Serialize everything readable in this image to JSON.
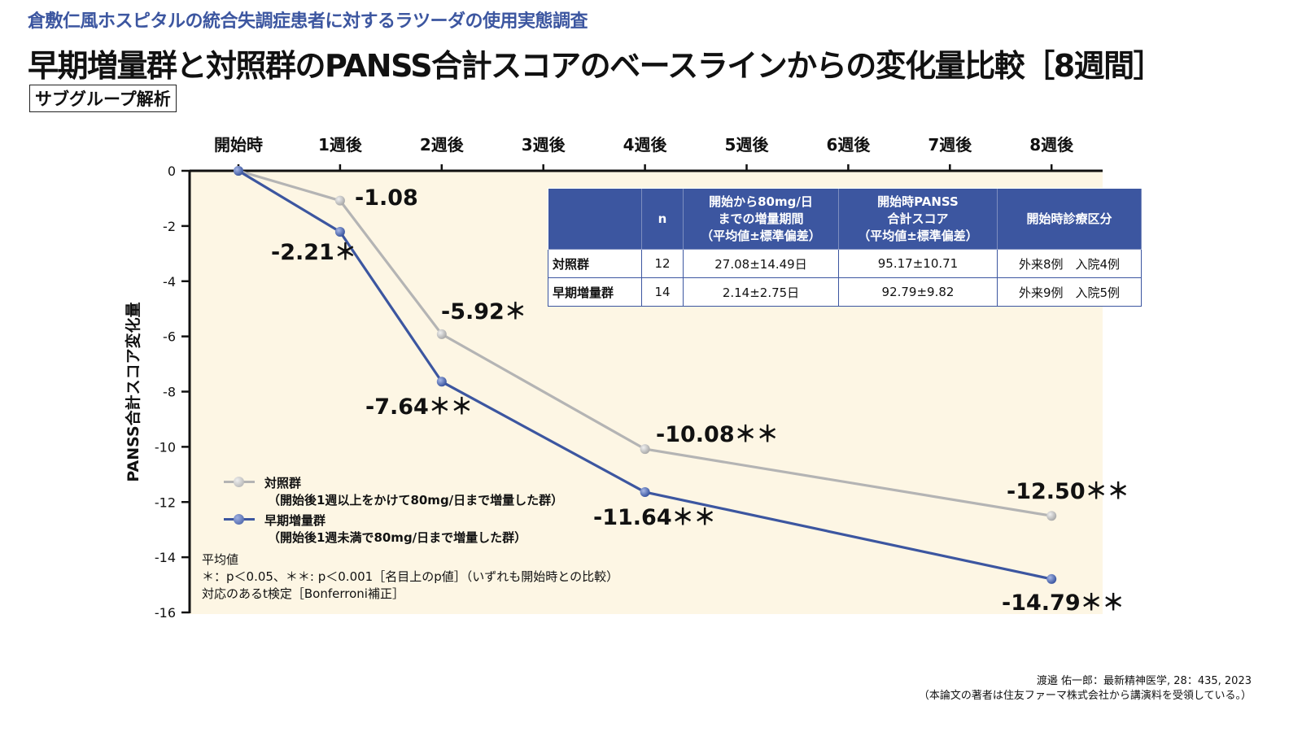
{
  "header": {
    "subtitle": "倉敷仁風ホスピタルの統合失調症患者に対するラツーダの使用実態調査",
    "title": "早期増量群と対照群のPANSS合計スコアのベースラインからの変化量比較［8週間］",
    "badge": "サブグループ解析"
  },
  "colors": {
    "accent": "#3c56a0",
    "control_line": "#b4b4b4",
    "plot_background": "#fdf6e4"
  },
  "chart_data": {
    "type": "line",
    "title": "早期増量群と対照群のPANSS合計スコアのベースラインからの変化量比較［8週間］",
    "xlabel": "",
    "ylabel": "PANSS合計スコア変化量",
    "categories": [
      "開始時",
      "1週後",
      "2週後",
      "3週後",
      "4週後",
      "5週後",
      "6週後",
      "7週後",
      "8週後"
    ],
    "x_positions_weeks": [
      0,
      1,
      2,
      3,
      4,
      5,
      6,
      7,
      8
    ],
    "ylim": [
      -16,
      0
    ],
    "yticks": [
      0,
      -2,
      -4,
      -6,
      -8,
      -10,
      -12,
      -14,
      -16
    ],
    "x_axis_position": "top",
    "grid": false,
    "legend_position": "lower-left",
    "series": [
      {
        "name": "対照群",
        "description": "（開始後1週以上をかけて80mg/日まで増量した群）",
        "color": "#b4b4b4",
        "x": [
          0,
          1,
          2,
          4,
          8
        ],
        "values": [
          0,
          -1.08,
          -5.92,
          -10.08,
          -12.5
        ],
        "labels": [
          "",
          "-1.08",
          "-5.92＊",
          "-10.08＊＊",
          "-12.50＊＊"
        ]
      },
      {
        "name": "早期増量群",
        "description": "（開始後1週未満で80mg/日まで増量した群）",
        "color": "#3c56a0",
        "x": [
          0,
          1,
          2,
          4,
          8
        ],
        "values": [
          0,
          -2.21,
          -7.64,
          -11.64,
          -14.79
        ],
        "labels": [
          "",
          "-2.21＊",
          "-7.64＊＊",
          "-11.64＊＊",
          "-14.79＊＊"
        ]
      }
    ],
    "annotations": [
      "平均値",
      "＊：p＜0.05、＊＊: p＜0.001［名目上のp値］（いずれも開始時との比較）",
      "対応のあるt検定［Bonferroni補正］"
    ]
  },
  "table": {
    "headers": [
      "",
      "n",
      "開始から80mg/日\nまでの増量期間\n（平均値±標準偏差）",
      "開始時PANSS\n合計スコア\n（平均値±標準偏差）",
      "開始時診療区分"
    ],
    "header_lines": [
      [
        ""
      ],
      [
        "n"
      ],
      [
        "開始から80mg/日",
        "までの増量期間",
        "（平均値±標準偏差）"
      ],
      [
        "開始時PANSS",
        "合計スコア",
        "（平均値±標準偏差）"
      ],
      [
        "開始時診療区分"
      ]
    ],
    "rows": [
      [
        "対照群",
        "12",
        "27.08±14.49日",
        "95.17±10.71",
        "外来8例　入院4例"
      ],
      [
        "早期増量群",
        "14",
        "2.14±2.75日",
        "92.79±9.82",
        "外来9例　入院5例"
      ]
    ]
  },
  "legend": {
    "control_name": "対照群",
    "control_desc": "（開始後1週以上をかけて80mg/日まで増量した群）",
    "early_name": "早期増量群",
    "early_desc": "（開始後1週未満で80mg/日まで増量した群）"
  },
  "notes": {
    "line1": "平均値",
    "line2": "＊：p＜0.05、＊＊: p＜0.001［名目上のp値］（いずれも開始時との比較）",
    "line3": "対応のあるt検定［Bonferroni補正］"
  },
  "citation": {
    "line1": "渡邉 佑一郎：最新精神医学, 28：435, 2023",
    "line2": "（本論文の著者は住友ファーマ株式会社から講演料を受領している。）"
  }
}
